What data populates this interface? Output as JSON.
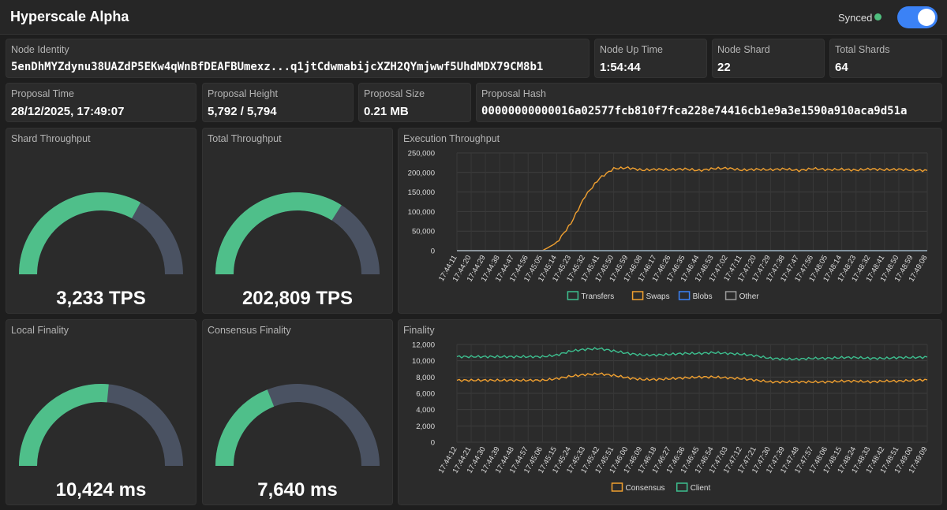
{
  "header": {
    "title": "Hyperscale Alpha",
    "sync_label": "Synced"
  },
  "stats": {
    "node_identity": {
      "label": "Node Identity",
      "value": "5enDhMYZdynu38UAZdP5EKw4qWnBfDEAFBUmexz...q1jtCdwmabijcXZH2QYmjwwf5UhdMDX79CM8b1"
    },
    "node_up_time": {
      "label": "Node Up Time",
      "value": "1:54:44"
    },
    "node_shard": {
      "label": "Node Shard",
      "value": "22"
    },
    "total_shards": {
      "label": "Total Shards",
      "value": "64"
    },
    "proposal_time": {
      "label": "Proposal Time",
      "value": "28/12/2025, 17:49:07"
    },
    "proposal_height": {
      "label": "Proposal Height",
      "value": "5,792 / 5,794"
    },
    "proposal_size": {
      "label": "Proposal Size",
      "value": "0.21 MB"
    },
    "proposal_hash": {
      "label": "Proposal Hash",
      "value": "00000000000016a02577fcb810f7fca228e74416cb1e9a3e1590a910aca9d51a"
    }
  },
  "gauges": {
    "shard_throughput": {
      "label": "Shard Throughput",
      "value": "3,233 TPS",
      "fill": 0.66
    },
    "total_throughput": {
      "label": "Total Throughput",
      "value": "202,809 TPS",
      "fill": 0.68
    },
    "local_finality": {
      "label": "Local Finality",
      "value": "10,424 ms",
      "fill": 0.53
    },
    "consensus_finality": {
      "label": "Consensus Finality",
      "value": "7,640 ms",
      "fill": 0.38
    }
  },
  "colors": {
    "gauge_fill": "#4fbf8a",
    "gauge_track": "#4a5262",
    "orange": "#f0a030",
    "green": "#3dbf8f",
    "blue": "#3b82f6",
    "gray": "#9a9a9a"
  },
  "chart_data": [
    {
      "type": "line",
      "title": "Execution Throughput",
      "ylim": [
        0,
        250000
      ],
      "yticks": [
        "250,000",
        "200,000",
        "150,000",
        "100,000",
        "50,000",
        "0"
      ],
      "categories": [
        "17:44:11",
        "17:44:20",
        "17:44:29",
        "17:44:38",
        "17:44:47",
        "17:44:56",
        "17:45:05",
        "17:45:14",
        "17:45:23",
        "17:45:32",
        "17:45:41",
        "17:45:50",
        "17:45:59",
        "17:46:08",
        "17:46:17",
        "17:46:26",
        "17:46:35",
        "17:46:44",
        "17:46:53",
        "17:47:02",
        "17:47:11",
        "17:47:20",
        "17:47:29",
        "17:47:38",
        "17:47:47",
        "17:47:56",
        "17:48:05",
        "17:48:14",
        "17:48:23",
        "17:48:32",
        "17:48:41",
        "17:48:50",
        "17:48:59",
        "17:49:08"
      ],
      "series": [
        {
          "name": "Transfers",
          "color": "#3dbf8f",
          "values": [
            0,
            0,
            0,
            0,
            0,
            0,
            0,
            0,
            0,
            0,
            0,
            0,
            0,
            0,
            0,
            0,
            0,
            0,
            0,
            0,
            0,
            0,
            0,
            0,
            0,
            0,
            0,
            0,
            0,
            0,
            0,
            0,
            0,
            0
          ]
        },
        {
          "name": "Swaps",
          "color": "#f0a030",
          "values": [
            0,
            0,
            0,
            0,
            0,
            0,
            0,
            20000,
            70000,
            140000,
            185000,
            210000,
            212000,
            206000,
            208000,
            207000,
            209000,
            205000,
            210000,
            211000,
            206000,
            208000,
            207000,
            209000,
            205000,
            210000,
            207000,
            208000,
            206000,
            209000,
            207000,
            208000,
            206000,
            205000
          ]
        },
        {
          "name": "Blobs",
          "color": "#3b82f6",
          "values": [
            0,
            0,
            0,
            0,
            0,
            0,
            0,
            0,
            0,
            0,
            0,
            0,
            0,
            0,
            0,
            0,
            0,
            0,
            0,
            0,
            0,
            0,
            0,
            0,
            0,
            0,
            0,
            0,
            0,
            0,
            0,
            0,
            0,
            0
          ]
        },
        {
          "name": "Other",
          "color": "#9a9a9a",
          "values": [
            0,
            0,
            0,
            0,
            0,
            0,
            0,
            0,
            0,
            0,
            0,
            0,
            0,
            0,
            0,
            0,
            0,
            0,
            0,
            0,
            0,
            0,
            0,
            0,
            0,
            0,
            0,
            0,
            0,
            0,
            0,
            0,
            0,
            0
          ]
        }
      ]
    },
    {
      "type": "line",
      "title": "Finality",
      "ylim": [
        0,
        12000
      ],
      "yticks": [
        "12,000",
        "10,000",
        "8,000",
        "6,000",
        "4,000",
        "2,000",
        "0"
      ],
      "categories": [
        "17:44:12",
        "17:44:21",
        "17:44:30",
        "17:44:39",
        "17:44:48",
        "17:44:57",
        "17:45:06",
        "17:45:15",
        "17:45:24",
        "17:45:33",
        "17:45:42",
        "17:45:51",
        "17:46:00",
        "17:46:09",
        "17:46:18",
        "17:46:27",
        "17:46:36",
        "17:46:45",
        "17:46:54",
        "17:47:03",
        "17:47:12",
        "17:47:21",
        "17:47:30",
        "17:47:39",
        "17:47:48",
        "17:47:57",
        "17:48:06",
        "17:48:15",
        "17:48:24",
        "17:48:33",
        "17:48:42",
        "17:48:51",
        "17:49:00",
        "17:49:09"
      ],
      "series": [
        {
          "name": "Consensus",
          "color": "#f0a030",
          "values": [
            7600,
            7600,
            7600,
            7600,
            7600,
            7600,
            7600,
            7800,
            8100,
            8300,
            8400,
            8200,
            7900,
            7700,
            7700,
            7800,
            7900,
            8000,
            8000,
            7900,
            7800,
            7600,
            7400,
            7400,
            7400,
            7400,
            7400,
            7500,
            7500,
            7400,
            7500,
            7500,
            7600,
            7650
          ]
        },
        {
          "name": "Client",
          "color": "#3dbf8f",
          "values": [
            10500,
            10500,
            10500,
            10500,
            10500,
            10500,
            10500,
            10700,
            11200,
            11400,
            11500,
            11200,
            10900,
            10700,
            10700,
            10800,
            10900,
            10900,
            11000,
            10900,
            10800,
            10600,
            10300,
            10200,
            10200,
            10300,
            10300,
            10400,
            10400,
            10300,
            10300,
            10400,
            10400,
            10450
          ]
        }
      ]
    }
  ]
}
